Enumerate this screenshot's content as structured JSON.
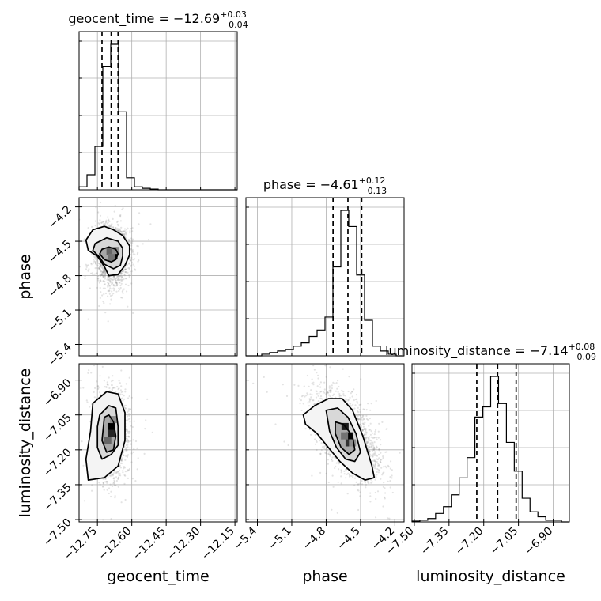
{
  "chart_data": {
    "type": "corner",
    "grid": true,
    "parameters": [
      {
        "name": "geocent_time",
        "range": [
          -12.83,
          -12.14
        ],
        "ticks": [
          "−12.75",
          "−12.60",
          "−12.45",
          "−12.30",
          "−12.15"
        ],
        "tick_values": [
          -12.75,
          -12.6,
          -12.45,
          -12.3,
          -12.15
        ],
        "median": -12.69,
        "plus": "+0.03",
        "minus": "−0.04",
        "title": "geocent_time = −12.69",
        "quantiles": [
          -12.73,
          -12.69,
          -12.66
        ],
        "histogram": {
          "edges_start": -12.83,
          "bin_width": 0.0345,
          "counts": [
            0.02,
            0.1,
            0.29,
            0.82,
            0.97,
            0.52,
            0.08,
            0.02,
            0.01,
            0.005,
            0,
            0,
            0,
            0,
            0,
            0,
            0,
            0,
            0,
            0
          ]
        }
      },
      {
        "name": "phase",
        "range": [
          -5.5,
          -4.12
        ],
        "ticks": [
          "−5.4",
          "−5.1",
          "−4.8",
          "−4.5",
          "−4.2"
        ],
        "tick_values": [
          -5.4,
          -5.1,
          -4.8,
          -4.5,
          -4.2
        ],
        "median": -4.61,
        "plus": "+0.12",
        "minus": "−0.13",
        "title": "phase = −4.61",
        "quantiles": [
          -4.74,
          -4.61,
          -4.49
        ],
        "histogram": {
          "edges_start": -5.5,
          "bin_width": 0.069,
          "counts": [
            0,
            0,
            0.01,
            0.02,
            0.03,
            0.04,
            0.06,
            0.08,
            0.12,
            0.16,
            0.24,
            0.55,
            0.9,
            0.8,
            0.5,
            0.22,
            0.06,
            0.03,
            0.01,
            0
          ]
        }
      },
      {
        "name": "luminosity_distance",
        "range": [
          -7.51,
          -6.83
        ],
        "ticks": [
          "−7.50",
          "−7.35",
          "−7.20",
          "−7.05",
          "−6.90"
        ],
        "tick_values": [
          -7.5,
          -7.35,
          -7.2,
          -7.05,
          -6.9
        ],
        "median": -7.14,
        "plus": "+0.08",
        "minus": "−0.09",
        "title": "luminosity_distance = −7.14",
        "quantiles": [
          -7.23,
          -7.14,
          -7.06
        ],
        "histogram": {
          "edges_start": -7.51,
          "bin_width": 0.034,
          "counts": [
            0.005,
            0.01,
            0.02,
            0.05,
            0.09,
            0.16,
            0.26,
            0.38,
            0.62,
            0.68,
            0.86,
            0.7,
            0.47,
            0.3,
            0.14,
            0.06,
            0.03,
            0.01,
            0.01,
            0
          ]
        }
      }
    ],
    "scatter_panels": [
      {
        "x": "geocent_time",
        "y": "phase",
        "center": [
          -12.685,
          -4.62
        ],
        "sigma": [
          0.035,
          0.12
        ],
        "contours": [
          [
            [
              -12.73,
              -4.57
            ],
            [
              -12.7,
              -4.55
            ],
            [
              -12.67,
              -4.57
            ],
            [
              -12.66,
              -4.61
            ],
            [
              -12.67,
              -4.66
            ],
            [
              -12.69,
              -4.68
            ],
            [
              -12.72,
              -4.66
            ],
            [
              -12.74,
              -4.61
            ]
          ],
          [
            [
              -12.76,
              -4.52
            ],
            [
              -12.71,
              -4.47
            ],
            [
              -12.66,
              -4.5
            ],
            [
              -12.64,
              -4.56
            ],
            [
              -12.64,
              -4.63
            ],
            [
              -12.65,
              -4.71
            ],
            [
              -12.68,
              -4.74
            ],
            [
              -12.72,
              -4.7
            ],
            [
              -12.74,
              -4.64
            ],
            [
              -12.77,
              -4.58
            ]
          ],
          [
            [
              -12.77,
              -4.4
            ],
            [
              -12.72,
              -4.37
            ],
            [
              -12.68,
              -4.4
            ],
            [
              -12.64,
              -4.45
            ],
            [
              -12.61,
              -4.54
            ],
            [
              -12.61,
              -4.62
            ],
            [
              -12.63,
              -4.71
            ],
            [
              -12.66,
              -4.79
            ],
            [
              -12.7,
              -4.8
            ],
            [
              -12.72,
              -4.72
            ],
            [
              -12.75,
              -4.63
            ],
            [
              -12.79,
              -4.58
            ],
            [
              -12.8,
              -4.49
            ]
          ]
        ],
        "hot_bins": [
          [
            -12.678,
            -4.62,
            1.0
          ],
          [
            -12.695,
            -4.59,
            0.6
          ],
          [
            -12.69,
            -4.64,
            0.55
          ],
          [
            -12.67,
            -4.58,
            0.45
          ]
        ]
      },
      {
        "x": "geocent_time",
        "y": "luminosity_distance",
        "center": [
          -12.695,
          -7.14
        ],
        "sigma": [
          0.035,
          0.085
        ],
        "contours": [
          [
            [
              -12.72,
              -7.06
            ],
            [
              -12.7,
              -7.05
            ],
            [
              -12.68,
              -7.08
            ],
            [
              -12.67,
              -7.14
            ],
            [
              -12.68,
              -7.2
            ],
            [
              -12.71,
              -7.21
            ],
            [
              -12.73,
              -7.16
            ]
          ],
          [
            [
              -12.74,
              -7.05
            ],
            [
              -12.7,
              -7.01
            ],
            [
              -12.67,
              -7.02
            ],
            [
              -12.66,
              -7.1
            ],
            [
              -12.66,
              -7.18
            ],
            [
              -12.69,
              -7.22
            ],
            [
              -12.73,
              -7.24
            ],
            [
              -12.75,
              -7.19
            ],
            [
              -12.75,
              -7.1
            ]
          ],
          [
            [
              -12.77,
              -7.0
            ],
            [
              -12.71,
              -6.95
            ],
            [
              -12.66,
              -6.96
            ],
            [
              -12.63,
              -7.04
            ],
            [
              -12.63,
              -7.16
            ],
            [
              -12.66,
              -7.27
            ],
            [
              -12.72,
              -7.32
            ],
            [
              -12.79,
              -7.33
            ],
            [
              -12.8,
              -7.24
            ],
            [
              -12.78,
              -7.12
            ]
          ]
        ],
        "hot_bins": [
          [
            -12.69,
            -7.1,
            1.0
          ],
          [
            -12.69,
            -7.13,
            0.85
          ],
          [
            -12.705,
            -7.16,
            0.6
          ],
          [
            -12.68,
            -7.07,
            0.45
          ]
        ]
      },
      {
        "x": "phase",
        "y": "luminosity_distance",
        "center": [
          -4.62,
          -7.14
        ],
        "sigma": [
          0.14,
          0.09
        ],
        "rho": -0.55,
        "contours": [
          [
            [
              -4.72,
              -7.08
            ],
            [
              -4.65,
              -7.09
            ],
            [
              -4.57,
              -7.14
            ],
            [
              -4.55,
              -7.2
            ],
            [
              -4.6,
              -7.22
            ],
            [
              -4.67,
              -7.19
            ],
            [
              -4.72,
              -7.13
            ]
          ],
          [
            [
              -4.8,
              -7.03
            ],
            [
              -4.7,
              -7.02
            ],
            [
              -4.61,
              -7.06
            ],
            [
              -4.54,
              -7.13
            ],
            [
              -4.5,
              -7.21
            ],
            [
              -4.55,
              -7.25
            ],
            [
              -4.63,
              -7.24
            ],
            [
              -4.71,
              -7.19
            ],
            [
              -4.77,
              -7.12
            ]
          ],
          [
            [
              -5.0,
              -7.05
            ],
            [
              -4.9,
              -7.01
            ],
            [
              -4.78,
              -6.98
            ],
            [
              -4.66,
              -6.98
            ],
            [
              -4.57,
              -7.03
            ],
            [
              -4.48,
              -7.14
            ],
            [
              -4.4,
              -7.27
            ],
            [
              -4.38,
              -7.32
            ],
            [
              -4.46,
              -7.33
            ],
            [
              -4.57,
              -7.3
            ],
            [
              -4.68,
              -7.25
            ],
            [
              -4.78,
              -7.19
            ],
            [
              -4.88,
              -7.13
            ],
            [
              -4.98,
              -7.09
            ]
          ]
        ],
        "hot_bins": [
          [
            -4.635,
            -7.1,
            0.9
          ],
          [
            -4.6,
            -7.14,
            1.0
          ],
          [
            -4.6,
            -7.17,
            0.8
          ],
          [
            -4.64,
            -7.14,
            0.55
          ],
          [
            -4.57,
            -7.17,
            0.45
          ]
        ]
      }
    ]
  }
}
